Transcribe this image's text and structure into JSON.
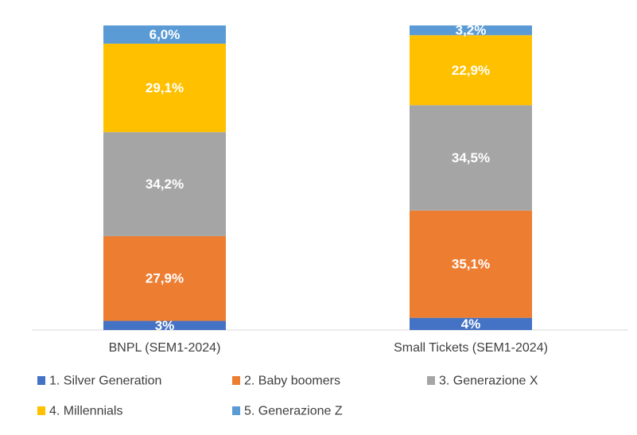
{
  "chart_data": {
    "type": "bar",
    "stacked": true,
    "normalized": true,
    "categories": [
      "BNPL (SEM1-2024)",
      "Small Tickets (SEM1-2024)"
    ],
    "series": [
      {
        "name": "1. Silver Generation",
        "color": "#4472C4",
        "values": [
          3,
          4
        ],
        "labels": [
          "3%",
          "4%"
        ]
      },
      {
        "name": "2. Baby boomers",
        "color": "#ED7D31",
        "values": [
          27.9,
          35.1
        ],
        "labels": [
          "27,9%",
          "35,1%"
        ]
      },
      {
        "name": "3. Generazione X",
        "color": "#A5A5A5",
        "values": [
          34.2,
          34.5
        ],
        "labels": [
          "34,2%",
          "34,5%"
        ]
      },
      {
        "name": "4. Millennials",
        "color": "#FFC000",
        "values": [
          29.1,
          22.9
        ],
        "labels": [
          "29,1%",
          "22,9%"
        ]
      },
      {
        "name": "5. Generazione Z",
        "color": "#5B9BD5",
        "values": [
          6.0,
          3.2
        ],
        "labels": [
          "6,0%",
          "3,2%"
        ]
      }
    ],
    "ylim": [
      0,
      100
    ],
    "grid": false,
    "legend_position": "bottom"
  }
}
